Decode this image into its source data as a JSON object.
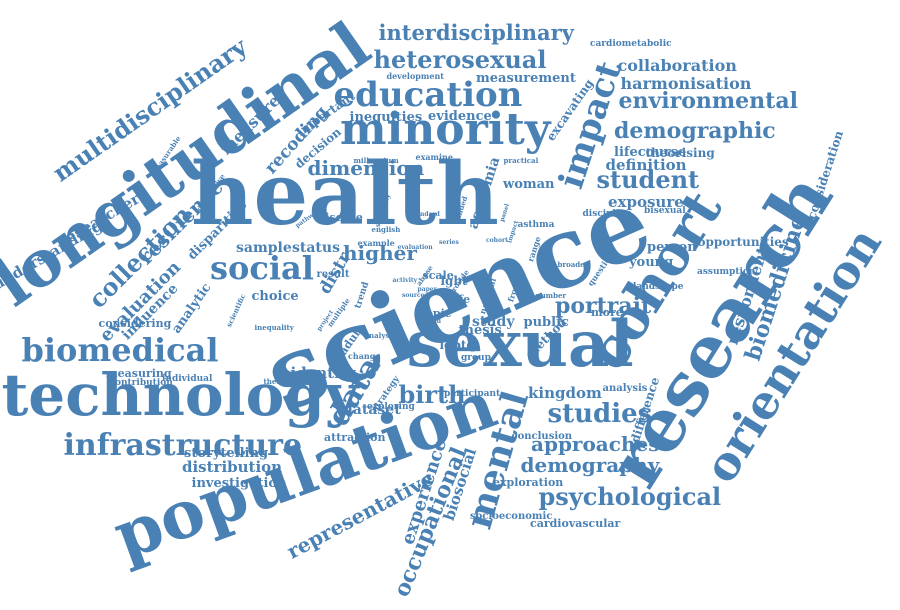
{
  "cloud": {
    "color": "#4a81b4",
    "words": [
      "health",
      "science",
      "research",
      "cohort",
      "sexual",
      "population",
      "longitudinal",
      "technology",
      "minority",
      "orientation",
      "impact",
      "mental",
      "education",
      "heterosexual",
      "interdisciplinary",
      "social",
      "data",
      "biomedical",
      "infrastructure",
      "multidisciplinary",
      "psychological",
      "studies",
      "demographic",
      "environmental",
      "student",
      "birth",
      "approaches",
      "demography",
      "collection",
      "resilience",
      "evaluation",
      "dimension",
      "occupational",
      "representative",
      "biomedicine",
      "respondent",
      "portrait",
      "higher",
      "kingdom",
      "experience",
      "biosocial",
      "collaboration",
      "harmonisation",
      "recoding",
      "measure",
      "definition",
      "exposure",
      "distribution",
      "investigation",
      "storytelling",
      "identity",
      "dataset",
      "young",
      "woman",
      "lifecourse",
      "theorising",
      "evidence",
      "inequities",
      "measurement",
      "excavating",
      "decision",
      "important",
      "researcher",
      "understanding",
      "disparities",
      "influence",
      "analytic",
      "sample",
      "status",
      "choice",
      "considering",
      "measuring",
      "contribution",
      "individual",
      "attraction",
      "strategy",
      "exploring",
      "cardiovascular",
      "socioeconomic",
      "exploration",
      "conclusion",
      "difference",
      "analysis",
      "person",
      "opportunities",
      "assumption",
      "landscape",
      "consideration",
      "cardiometabolic",
      "development",
      "trend",
      "examine",
      "millennium",
      "descriptive",
      "measurable",
      "scientific",
      "inequality",
      "adult",
      "project",
      "result",
      "disease",
      "academia",
      "lgbt",
      "lgbtq",
      "scale",
      "topic",
      "life",
      "thesis",
      "study",
      "public",
      "method",
      "more",
      "group",
      "participant",
      "bisexual",
      "practical",
      "asthma",
      "discipline",
      "range",
      "question",
      "example",
      "english",
      "pathway",
      "change",
      "analyse",
      "theoretical",
      "distr",
      "national",
      "frontier",
      "based",
      "abuse",
      "provide",
      "broader",
      "number",
      "funded",
      "multiple",
      "sexuality",
      "activity",
      "paper",
      "sources",
      "series",
      "panel",
      "impact",
      "cohort",
      "evaluation",
      "standard",
      "ethics"
    ]
  }
}
